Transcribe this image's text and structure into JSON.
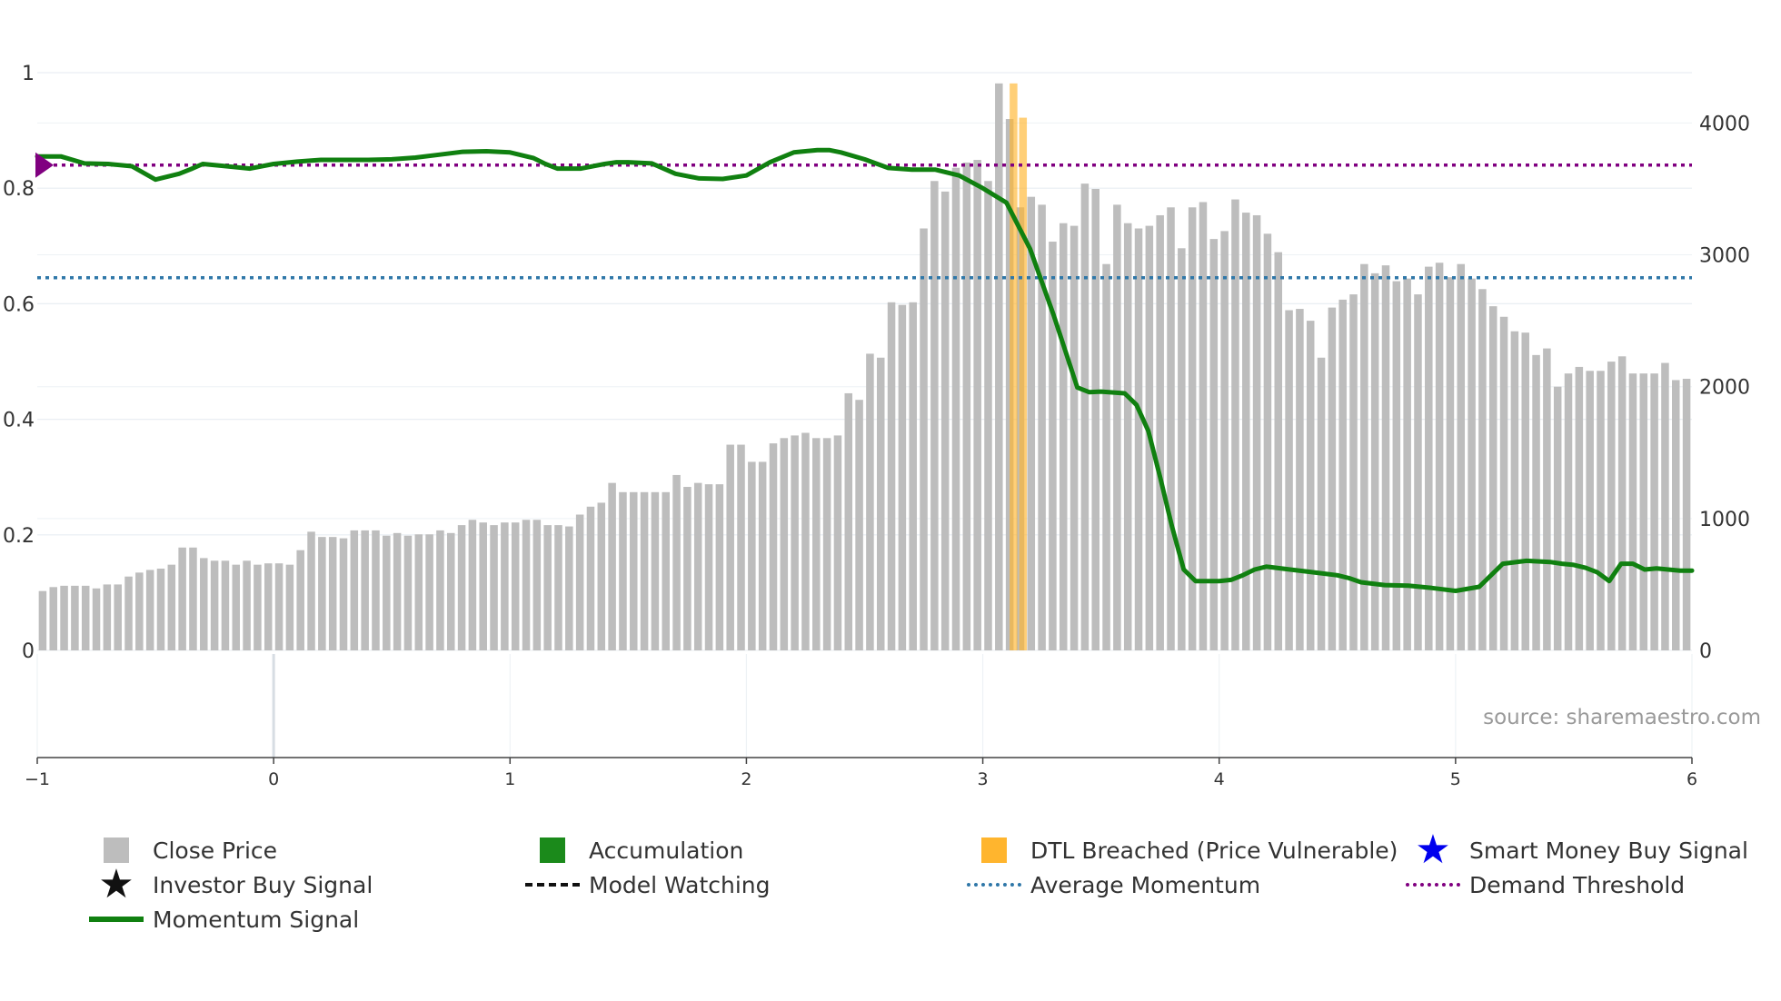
{
  "chart_data": {
    "type": "bar+line",
    "title": "",
    "xlabel": "",
    "ylabel_left": "",
    "ylabel_right": "",
    "x_ticks": [
      "−1",
      "0",
      "1",
      "2",
      "3",
      "4",
      "5",
      "6"
    ],
    "x_range": [
      -1,
      6
    ],
    "y_left_ticks": [
      "0",
      "0.2",
      "0.4",
      "0.6",
      "0.8",
      "1"
    ],
    "y_left_range": [
      0,
      1
    ],
    "y_right_ticks": [
      "0",
      "1000",
      "2000",
      "3000",
      "4000"
    ],
    "y_right_range": [
      0,
      4540
    ],
    "source_text": "source: sharemaestro.com",
    "close_price": {
      "name": "Close Price",
      "color": "#bdbdbd",
      "values": [
        450,
        480,
        490,
        490,
        490,
        470,
        500,
        500,
        560,
        590,
        610,
        620,
        650,
        780,
        780,
        700,
        680,
        680,
        650,
        680,
        650,
        660,
        660,
        650,
        760,
        900,
        860,
        860,
        850,
        910,
        910,
        910,
        870,
        890,
        870,
        880,
        880,
        910,
        890,
        950,
        990,
        970,
        950,
        970,
        970,
        990,
        990,
        950,
        950,
        940,
        1030,
        1090,
        1120,
        1270,
        1200,
        1200,
        1200,
        1200,
        1200,
        1330,
        1240,
        1270,
        1260,
        1260,
        1560,
        1560,
        1430,
        1430,
        1570,
        1610,
        1630,
        1650,
        1610,
        1610,
        1630,
        1950,
        1900,
        2250,
        2220,
        2640,
        2620,
        2640,
        3200,
        3560,
        3480,
        3660,
        3700,
        3720,
        3560,
        4300,
        4030,
        3360,
        3440,
        3380,
        3100,
        3240,
        3220,
        3540,
        3500,
        2930,
        3380,
        3240,
        3200,
        3220,
        3300,
        3360,
        3050,
        3360,
        3400,
        3120,
        3180,
        3420,
        3320,
        3300,
        3160,
        3020,
        2580,
        2590,
        2500,
        2220,
        2600,
        2660,
        2700,
        2930,
        2860,
        2920,
        2800,
        2820,
        2700,
        2910,
        2940,
        2830,
        2930,
        2820,
        2740,
        2610,
        2530,
        2420,
        2410,
        2240,
        2290,
        2000,
        2100,
        2150,
        2120,
        2120,
        2190,
        2230,
        2100,
        2100,
        2100,
        2180,
        2050,
        2060
      ]
    },
    "dtl_breached": {
      "name": "DTL Breached (Price Vulnerable)",
      "color": "#ffb52e",
      "values": [
        4300,
        4040
      ],
      "x": [
        3.13,
        3.17
      ]
    },
    "momentum": {
      "name": "Momentum Signal",
      "color": "#108010",
      "x": [
        -1.0,
        -0.9,
        -0.8,
        -0.7,
        -0.6,
        -0.5,
        -0.4,
        -0.35,
        -0.3,
        -0.2,
        -0.1,
        0.0,
        0.1,
        0.2,
        0.3,
        0.4,
        0.5,
        0.6,
        0.7,
        0.8,
        0.9,
        1.0,
        1.1,
        1.15,
        1.2,
        1.3,
        1.4,
        1.45,
        1.5,
        1.6,
        1.7,
        1.8,
        1.9,
        2.0,
        2.1,
        2.2,
        2.3,
        2.35,
        2.4,
        2.5,
        2.6,
        2.7,
        2.8,
        2.9,
        3.0,
        3.1,
        3.2,
        3.3,
        3.4,
        3.45,
        3.5,
        3.6,
        3.65,
        3.7,
        3.75,
        3.8,
        3.85,
        3.9,
        3.95,
        4.0,
        4.05,
        4.1,
        4.15,
        4.2,
        4.3,
        4.4,
        4.5,
        4.55,
        4.6,
        4.7,
        4.8,
        4.9,
        5.0,
        5.1,
        5.2,
        5.3,
        5.4,
        5.45,
        5.5,
        5.55,
        5.6,
        5.65,
        5.7,
        5.75,
        5.8,
        5.85,
        5.9,
        5.95,
        6.0
      ],
      "y": [
        0.855,
        0.855,
        0.843,
        0.842,
        0.838,
        0.815,
        0.825,
        0.833,
        0.842,
        0.838,
        0.834,
        0.842,
        0.846,
        0.849,
        0.849,
        0.849,
        0.85,
        0.853,
        0.858,
        0.863,
        0.864,
        0.862,
        0.852,
        0.842,
        0.834,
        0.834,
        0.842,
        0.845,
        0.845,
        0.843,
        0.825,
        0.817,
        0.816,
        0.822,
        0.845,
        0.862,
        0.866,
        0.866,
        0.862,
        0.85,
        0.835,
        0.832,
        0.832,
        0.822,
        0.8,
        0.775,
        0.695,
        0.58,
        0.455,
        0.447,
        0.448,
        0.445,
        0.425,
        0.38,
        0.3,
        0.215,
        0.14,
        0.12,
        0.12,
        0.12,
        0.122,
        0.13,
        0.14,
        0.145,
        0.14,
        0.135,
        0.13,
        0.125,
        0.118,
        0.113,
        0.112,
        0.108,
        0.103,
        0.11,
        0.15,
        0.155,
        0.153,
        0.15,
        0.148,
        0.143,
        0.135,
        0.12,
        0.15,
        0.15,
        0.14,
        0.142,
        0.14,
        0.138,
        0.138
      ]
    },
    "demand_threshold": {
      "name": "Demand Threshold",
      "color": "#800080",
      "value": 0.84
    },
    "average_momentum": {
      "name": "Average Momentum",
      "color": "#2f77a8",
      "value": 0.645
    },
    "legend": {
      "close_price": "Close Price",
      "accumulation": "Accumulation",
      "dtl_breached": "DTL Breached (Price Vulnerable)",
      "smart_money": "Smart Money Buy Signal",
      "investor_buy": "Investor Buy Signal",
      "model_watching": "Model Watching",
      "average_momentum": "Average Momentum",
      "demand_threshold": "Demand Threshold",
      "momentum_signal": "Momentum Signal"
    }
  },
  "colors": {
    "close_price": "#bdbdbd",
    "accumulation": "#1b8a1b",
    "dtl": "#ffb52e",
    "smart_money": "#0000ee",
    "investor_buy": "#111111",
    "model_watching": "#111111",
    "average_momentum": "#2f77a8",
    "demand_threshold": "#800080",
    "momentum": "#108010",
    "marker": "#800080"
  }
}
